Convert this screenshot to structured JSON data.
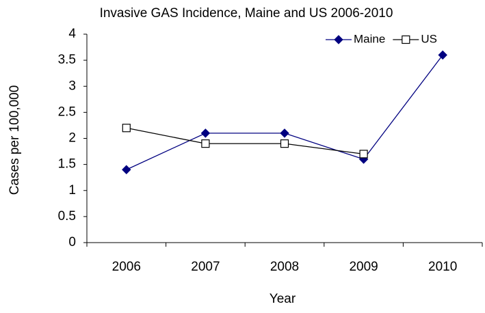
{
  "chart_data": {
    "type": "line",
    "title": "Invasive GAS Incidence, Maine and US 2006-2010",
    "x_label": "Year",
    "y_label": "Cases per 100,000",
    "categories": [
      "2006",
      "2007",
      "2008",
      "2009",
      "2010"
    ],
    "series": [
      {
        "name": "Maine",
        "color": "#000080",
        "marker": "diamond",
        "values": [
          1.4,
          2.1,
          2.1,
          1.6,
          3.6
        ]
      },
      {
        "name": "US",
        "color": "#000000",
        "marker": "square",
        "values": [
          2.2,
          1.9,
          1.9,
          1.7,
          null
        ]
      }
    ],
    "ylim": [
      0,
      4
    ],
    "yticks": [
      0,
      0.5,
      1,
      1.5,
      2,
      2.5,
      3,
      3.5,
      4
    ],
    "grid": false,
    "legend": "top-right"
  }
}
